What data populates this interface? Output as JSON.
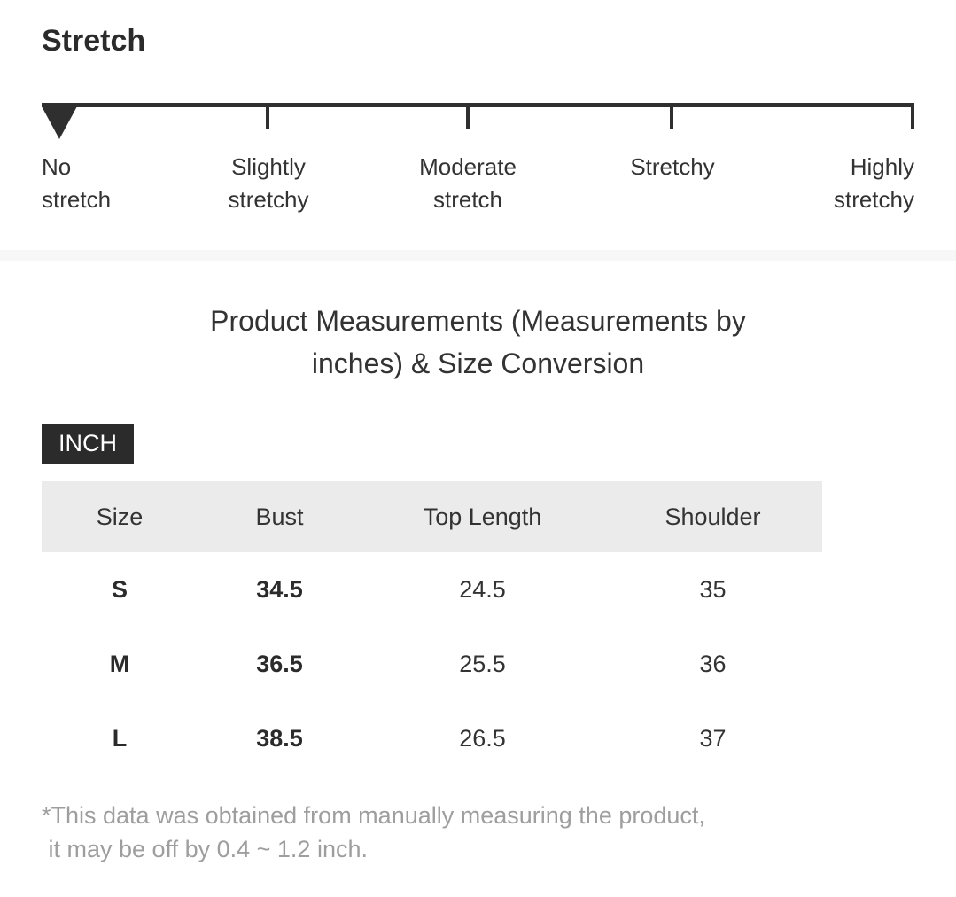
{
  "stretch": {
    "title": "Stretch",
    "selected_level": "No stretch",
    "selected_index": 0,
    "levels": [
      {
        "label": "No stretch",
        "lines": [
          "No",
          "stretch"
        ]
      },
      {
        "label": "Slightly stretchy",
        "lines": [
          "Slightly",
          "stretchy"
        ]
      },
      {
        "label": "Moderate stretch",
        "lines": [
          "Moderate",
          "stretch"
        ]
      },
      {
        "label": "Stretchy",
        "lines": [
          "Stretchy"
        ]
      },
      {
        "label": "Highly stretchy",
        "lines": [
          "Highly",
          "stretchy"
        ]
      }
    ]
  },
  "measurements": {
    "title": "Product Measurements (Measurements by inches) & Size Conversion",
    "title_lines": [
      "Product Measurements (Measurements by",
      "inches) & Size Conversion"
    ],
    "unit_badge": "INCH",
    "table": {
      "columns": [
        "Size",
        "Bust",
        "Top Length",
        "Shoulder"
      ],
      "rows": [
        {
          "size": "S",
          "bust": "34.5",
          "top_length": "24.5",
          "shoulder": "35"
        },
        {
          "size": "M",
          "bust": "36.5",
          "top_length": "25.5",
          "shoulder": "36"
        },
        {
          "size": "L",
          "bust": "38.5",
          "top_length": "26.5",
          "shoulder": "37"
        }
      ]
    },
    "footnote_lines": [
      "*This data was obtained from manually measuring the product,",
      " it may be off by 0.4 ~ 1.2 inch."
    ]
  },
  "colors": {
    "text_dark": "#2b2b2b",
    "text_regular": "#333333",
    "scale_mark": "#2f2f2f",
    "table_header_bg": "#ebebeb",
    "divider_bg": "#f7f7f7",
    "footnote_gray": "#9e9e9e",
    "badge_bg": "#2b2b2b",
    "badge_text": "#ffffff"
  }
}
